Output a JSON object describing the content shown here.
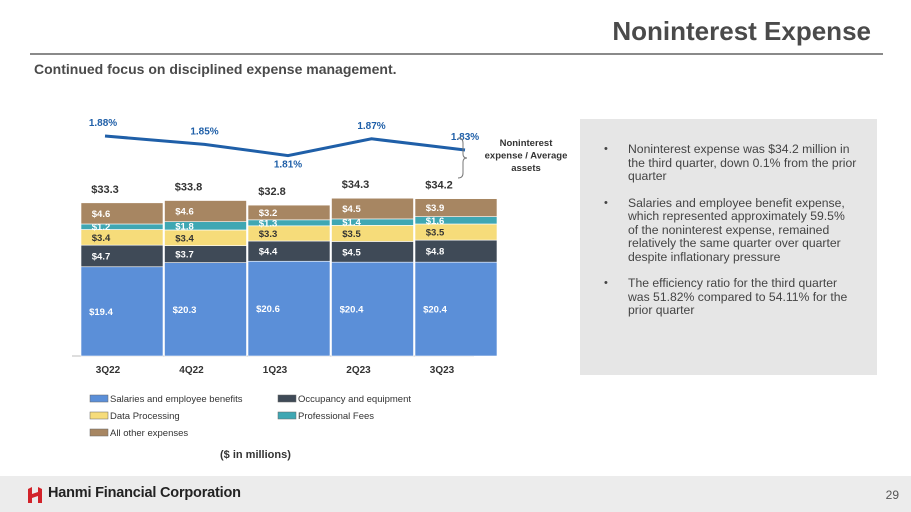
{
  "page": {
    "title": "Noninterest Expense",
    "subtitle": "Continued focus on disciplined expense management.",
    "page_number": "29",
    "company_name": "Hanmi Financial Corporation",
    "units_note": "($ in millions)"
  },
  "bullets": [
    "Noninterest expense was $34.2 million in the third quarter, down 0.1% from the prior quarter",
    "Salaries and employee benefit expense, which represented approximately 59.5% of the noninterest expense, remained relatively the same quarter over quarter despite inflationary pressure",
    "The efficiency ratio for the third quarter was 51.82% compared to 54.11% for the prior quarter"
  ],
  "chart_data": {
    "type": "bar",
    "stacked": true,
    "title": "",
    "xlabel": "",
    "ylabel": "",
    "categories": [
      "3Q22",
      "4Q22",
      "1Q23",
      "2Q23",
      "3Q23"
    ],
    "series": [
      {
        "name": "Salaries and employee benefits",
        "values": [
          19.4,
          20.3,
          20.6,
          20.4,
          20.4
        ],
        "labels": [
          "$19.4",
          "$20.3",
          "$20.6",
          "$20.4",
          "$20.4"
        ],
        "color": "#5b8fd8"
      },
      {
        "name": "Occupancy and equipment",
        "values": [
          4.7,
          3.7,
          4.4,
          4.5,
          4.8
        ],
        "labels": [
          "$4.7",
          "$3.7",
          "$4.4",
          "$4.5",
          "$4.8"
        ],
        "color": "#3f4a57"
      },
      {
        "name": "Data Processing",
        "values": [
          3.4,
          3.4,
          3.3,
          3.5,
          3.5
        ],
        "labels": [
          "$3.4",
          "$3.4",
          "$3.3",
          "$3.5",
          "$3.5"
        ],
        "color": "#f6dc7a"
      },
      {
        "name": "Professional Fees",
        "values": [
          1.2,
          1.8,
          1.3,
          1.4,
          1.6
        ],
        "labels": [
          "$1.2",
          "$1.8",
          "$1.3",
          "$1.4",
          "$1.6"
        ],
        "color": "#3fa7b3"
      },
      {
        "name": "All other expenses",
        "values": [
          4.6,
          4.6,
          3.2,
          4.5,
          3.9
        ],
        "labels": [
          "$4.6",
          "$4.6",
          "$3.2",
          "$4.5",
          "$3.9"
        ],
        "color": "#a78662"
      }
    ],
    "totals": [
      "$33.3",
      "$33.8",
      "$32.8",
      "$34.3",
      "$34.2"
    ],
    "ratio_series": {
      "name": "Noninterest expense / Average assets",
      "values": [
        1.88,
        1.85,
        1.81,
        1.87,
        1.83
      ],
      "labels": [
        "1.88%",
        "1.85%",
        "1.81%",
        "1.87%",
        "1.83%"
      ],
      "color": "#1f5fa8"
    },
    "ratio_label_lines": [
      "Noninterest",
      "expense / Average",
      "assets"
    ],
    "legend": [
      "Salaries and employee benefits",
      "Occupancy and equipment",
      "Data Processing",
      "Professional Fees",
      "All other expenses"
    ],
    "legend_position": "bottom",
    "ylim": [
      0,
      40
    ],
    "grid": false
  }
}
